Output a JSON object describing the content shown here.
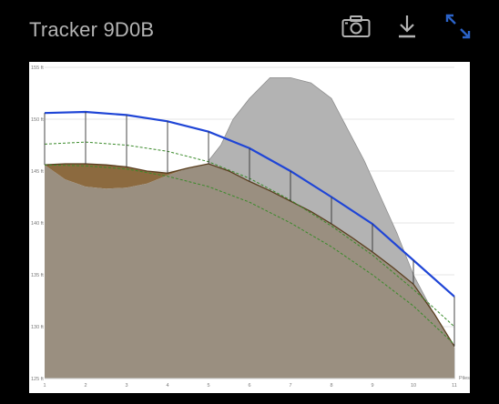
{
  "header": {
    "title": "Tracker 9D0B"
  },
  "toolbar": {
    "camera_icon": "camera-icon",
    "download_icon": "download-icon",
    "expand_icon": "expand-icon",
    "accent_color": "#2b63c8",
    "icon_color": "#b4b4b4"
  },
  "chart_data": {
    "type": "area",
    "x_unit_label": "Piles",
    "y_unit": "ft",
    "x_ticks": [
      "1",
      "2",
      "3",
      "4",
      "5",
      "6",
      "7",
      "8",
      "9",
      "10",
      "11"
    ],
    "y_ticks": [
      "125 ft",
      "130 ft",
      "135 ft",
      "140 ft",
      "145 ft",
      "150 ft",
      "155 ft"
    ],
    "xlim": [
      1,
      11
    ],
    "ylim": [
      125,
      155
    ],
    "grid": true,
    "colors": {
      "terrain_fill": "#9a8f80",
      "cut_fill": "#8c6a3f",
      "obstruction_fill": "#b3b3b3",
      "tracker_line": "#1f45d6",
      "terrain_line": "#5a3f1f",
      "dashed": "#3a8a2a",
      "pile": "#333333"
    },
    "obstruction": {
      "x": [
        5.0,
        5.3,
        5.6,
        6.0,
        6.5,
        7.0,
        7.5,
        8.0,
        8.4,
        8.8,
        9.2,
        9.6,
        10.0,
        10.4,
        10.8,
        11.0
      ],
      "y": [
        146.0,
        147.5,
        150.0,
        152.0,
        154.0,
        154.0,
        153.5,
        152.0,
        149.0,
        146.0,
        142.5,
        139.0,
        135.0,
        132.0,
        128.5,
        128.0
      ]
    },
    "ground": {
      "x": [
        1,
        1.5,
        2,
        2.5,
        3,
        3.5,
        4,
        4.5,
        5,
        5.5,
        6,
        6.5,
        7,
        7.5,
        8,
        8.5,
        9,
        9.5,
        10,
        10.5,
        11
      ],
      "y": [
        145.6,
        145.7,
        145.7,
        145.6,
        145.4,
        145.0,
        144.8,
        145.3,
        145.7,
        145.0,
        144.0,
        143.1,
        142.1,
        141.1,
        139.9,
        138.6,
        137.2,
        135.7,
        134.1,
        131.3,
        128.1
      ]
    },
    "cut": {
      "x": [
        1,
        1.5,
        2,
        2.5,
        3,
        3.5,
        4,
        4.5,
        5
      ],
      "y": [
        145.6,
        144.2,
        143.5,
        143.3,
        143.4,
        143.8,
        144.6,
        145.3,
        145.7
      ]
    },
    "tracker": {
      "x": [
        1,
        2,
        3,
        4,
        5,
        6,
        7,
        8,
        9,
        10,
        11
      ],
      "y": [
        150.6,
        150.7,
        150.4,
        149.8,
        148.8,
        147.2,
        145.0,
        142.5,
        139.9,
        136.4,
        132.9
      ]
    },
    "dashed_upper": {
      "x": [
        1,
        2,
        3,
        4,
        5,
        6,
        7,
        8,
        9,
        10,
        11
      ],
      "y": [
        147.6,
        147.8,
        147.5,
        146.9,
        145.9,
        144.3,
        142.2,
        139.7,
        136.9,
        133.6,
        130.0
      ]
    },
    "dashed_lower": {
      "x": [
        1,
        2,
        3,
        4,
        5,
        6,
        7,
        8,
        9,
        10,
        11
      ],
      "y": [
        145.6,
        145.5,
        145.2,
        144.5,
        143.5,
        142.0,
        140.0,
        137.7,
        135.0,
        132.0,
        128.3
      ]
    }
  }
}
